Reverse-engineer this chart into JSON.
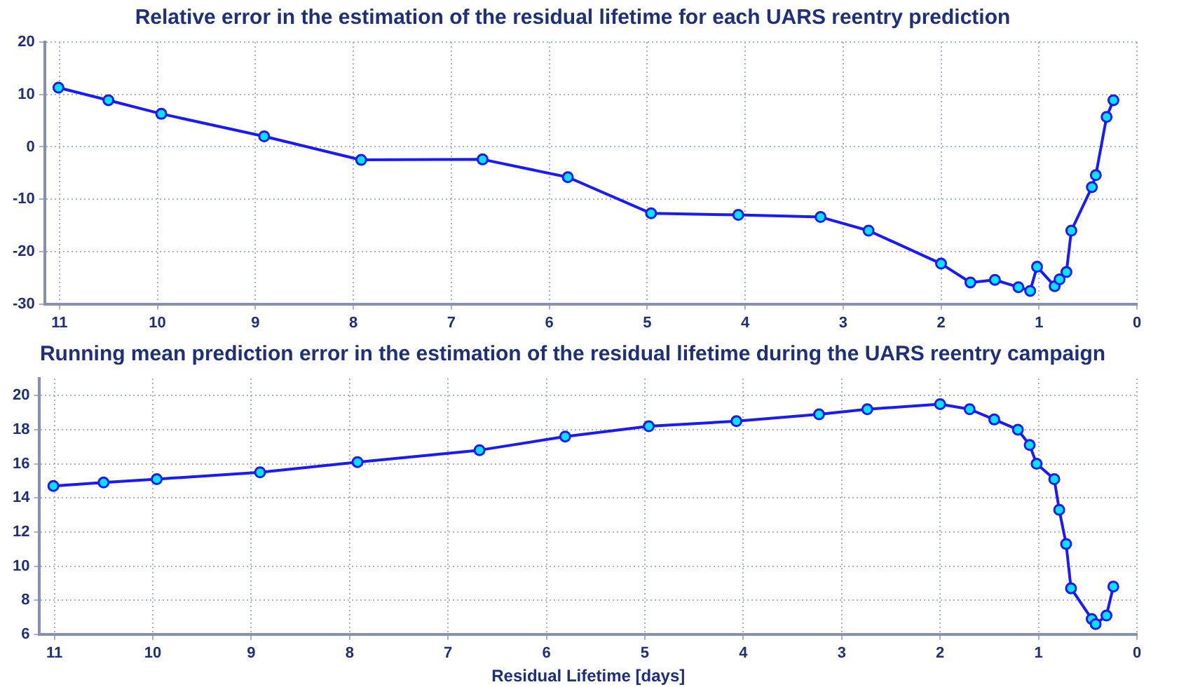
{
  "chart_data": [
    {
      "type": "line",
      "title": "Relative error in the estimation of the residual lifetime for each UARS reentry prediction",
      "x": [
        11.01,
        10.5,
        9.96,
        8.91,
        7.92,
        6.68,
        5.81,
        4.96,
        4.07,
        3.23,
        2.74,
        2.0,
        1.7,
        1.45,
        1.21,
        1.09,
        1.02,
        0.84,
        0.79,
        0.72,
        0.67,
        0.46,
        0.42,
        0.31,
        0.24
      ],
      "series": [
        {
          "color": "#1a1aff",
          "values": [
            11.3,
            8.9,
            6.3,
            2.0,
            -2.5,
            -2.4,
            -5.8,
            -12.7,
            -13.0,
            -13.4,
            -16.0,
            -22.3,
            -25.9,
            -25.4,
            -26.8,
            -27.5,
            -22.9,
            -26.6,
            -25.3,
            -23.9,
            -16.0,
            -7.7,
            -5.4,
            5.7,
            8.9
          ]
        }
      ],
      "xlim": [
        11.15,
        0
      ],
      "xticks": [
        11,
        10,
        9,
        8,
        7,
        6,
        5,
        4,
        3,
        2,
        1,
        0
      ],
      "ylim": [
        -30,
        20
      ],
      "yticks": [
        -30,
        -20,
        -10,
        0,
        10,
        20
      ],
      "grid": true,
      "legend": false,
      "marker": "circle",
      "line_style": "solid"
    },
    {
      "type": "line",
      "title": "Running mean prediction error in the estimation of the residual lifetime during the UARS reentry campaign",
      "xlabel": "Residual Lifetime [days]",
      "x": [
        11.01,
        10.5,
        9.96,
        8.91,
        7.92,
        6.68,
        5.81,
        4.96,
        4.07,
        3.23,
        2.74,
        2.0,
        1.7,
        1.45,
        1.21,
        1.09,
        1.02,
        0.84,
        0.79,
        0.72,
        0.67,
        0.46,
        0.42,
        0.31,
        0.24
      ],
      "series": [
        {
          "color": "#1a1aff",
          "values": [
            14.7,
            14.9,
            15.1,
            15.5,
            16.1,
            16.8,
            17.6,
            18.2,
            18.5,
            18.9,
            19.2,
            19.5,
            19.2,
            18.6,
            18.0,
            17.1,
            16.0,
            15.1,
            13.3,
            11.3,
            8.7,
            6.9,
            6.6,
            7.1,
            8.8
          ]
        }
      ],
      "xlim": [
        11.15,
        0
      ],
      "xticks": [
        11,
        10,
        9,
        8,
        7,
        6,
        5,
        4,
        3,
        2,
        1,
        0
      ],
      "ylim": [
        6,
        21
      ],
      "yticks": [
        6,
        8,
        10,
        12,
        14,
        16,
        18,
        20
      ],
      "grid": true,
      "legend": false,
      "marker": "circle",
      "line_style": "solid"
    }
  ]
}
